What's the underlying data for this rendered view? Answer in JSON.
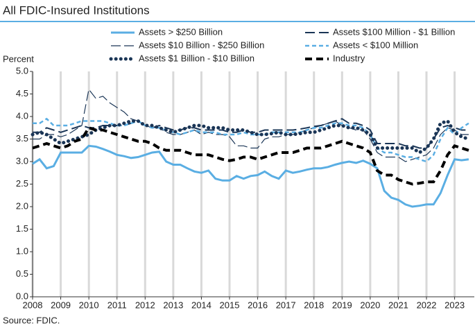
{
  "chart_data": {
    "type": "line",
    "title": "All FDIC-Insured Institutions",
    "y_label": "Percent",
    "source": "Source: FDIC.",
    "x": [
      2008,
      2008.25,
      2008.5,
      2008.75,
      2009,
      2009.25,
      2009.5,
      2009.75,
      2010,
      2010.25,
      2010.5,
      2010.75,
      2011,
      2011.25,
      2011.5,
      2011.75,
      2012,
      2012.25,
      2012.5,
      2012.75,
      2013,
      2013.25,
      2013.5,
      2013.75,
      2014,
      2014.25,
      2014.5,
      2014.75,
      2015,
      2015.25,
      2015.5,
      2015.75,
      2016,
      2016.25,
      2016.5,
      2016.75,
      2017,
      2017.25,
      2017.5,
      2017.75,
      2018,
      2018.25,
      2018.5,
      2018.75,
      2019,
      2019.25,
      2019.5,
      2019.75,
      2020,
      2020.25,
      2020.5,
      2020.75,
      2021,
      2021.25,
      2021.5,
      2021.75,
      2022,
      2022.25,
      2022.5,
      2022.75,
      2023,
      2023.25,
      2023.5
    ],
    "series": [
      {
        "name": "Assets > $250 Billion",
        "color": "#5aaee3",
        "style": "solid",
        "values": [
          2.95,
          3.05,
          2.85,
          2.9,
          3.2,
          3.2,
          3.2,
          3.2,
          3.35,
          3.33,
          3.28,
          3.22,
          3.15,
          3.12,
          3.08,
          3.1,
          3.15,
          3.2,
          3.22,
          3.0,
          2.93,
          2.93,
          2.85,
          2.78,
          2.75,
          2.8,
          2.62,
          2.58,
          2.58,
          2.68,
          2.62,
          2.68,
          2.7,
          2.78,
          2.68,
          2.62,
          2.8,
          2.75,
          2.78,
          2.82,
          2.85,
          2.85,
          2.88,
          2.93,
          2.97,
          3.0,
          2.97,
          3.02,
          2.95,
          2.85,
          2.35,
          2.2,
          2.15,
          2.05,
          2.0,
          2.02,
          2.05,
          2.05,
          2.3,
          2.7,
          3.05,
          3.03,
          3.05
        ]
      },
      {
        "name": "Assets  $100 Million - $1 Billion",
        "color": "#1a3556",
        "style": "long-dash",
        "values": [
          3.65,
          3.65,
          3.75,
          3.7,
          3.65,
          3.7,
          3.75,
          3.8,
          3.75,
          3.75,
          3.8,
          3.8,
          3.8,
          3.8,
          3.85,
          3.9,
          3.8,
          3.75,
          3.8,
          3.75,
          3.7,
          3.7,
          3.75,
          3.75,
          3.7,
          3.7,
          3.7,
          3.7,
          3.65,
          3.65,
          3.7,
          3.65,
          3.65,
          3.7,
          3.7,
          3.7,
          3.7,
          3.7,
          3.72,
          3.75,
          3.78,
          3.8,
          3.85,
          3.9,
          3.95,
          3.85,
          3.85,
          3.8,
          3.7,
          3.4,
          3.4,
          3.4,
          3.4,
          3.35,
          3.35,
          3.3,
          3.3,
          3.5,
          3.75,
          3.8,
          3.75,
          3.7,
          3.7
        ]
      },
      {
        "name": "Assets  $10 Billion - $250 Billion",
        "color": "#1a3556",
        "style": "thin-dash",
        "values": [
          3.5,
          3.5,
          3.6,
          3.6,
          3.55,
          3.6,
          3.7,
          3.8,
          4.6,
          4.4,
          4.45,
          4.3,
          4.2,
          4.1,
          3.95,
          3.9,
          3.8,
          3.75,
          3.75,
          3.65,
          3.6,
          3.6,
          3.65,
          3.7,
          3.6,
          3.65,
          3.6,
          3.6,
          3.55,
          3.35,
          3.35,
          3.3,
          3.3,
          3.5,
          3.55,
          3.55,
          3.6,
          3.6,
          3.65,
          3.7,
          3.75,
          3.8,
          3.85,
          3.9,
          3.8,
          3.75,
          3.7,
          3.7,
          3.5,
          3.2,
          3.1,
          3.1,
          3.1,
          3.0,
          3.05,
          3.1,
          3.15,
          3.3,
          3.6,
          3.75,
          3.7,
          3.6,
          3.6
        ]
      },
      {
        "name": "Assets < $100 Million",
        "color": "#5aaee3",
        "style": "dash",
        "values": [
          3.85,
          3.85,
          3.95,
          3.8,
          3.8,
          3.8,
          3.85,
          3.9,
          3.9,
          3.9,
          3.9,
          3.85,
          3.8,
          3.8,
          3.85,
          3.9,
          3.8,
          3.75,
          3.75,
          3.7,
          3.65,
          3.6,
          3.65,
          3.7,
          3.65,
          3.65,
          3.65,
          3.6,
          3.6,
          3.6,
          3.65,
          3.6,
          3.6,
          3.6,
          3.65,
          3.65,
          3.65,
          3.65,
          3.65,
          3.7,
          3.75,
          3.75,
          3.8,
          3.85,
          3.85,
          3.8,
          3.8,
          3.75,
          3.6,
          3.3,
          3.2,
          3.2,
          3.15,
          3.1,
          3.1,
          3.05,
          3.0,
          3.15,
          3.5,
          3.75,
          3.6,
          3.75,
          3.85
        ]
      },
      {
        "name": "Assets  $1 Billion - $10 Billion",
        "color": "#1a3556",
        "style": "dotted",
        "values": [
          3.6,
          3.65,
          3.6,
          3.5,
          3.4,
          3.45,
          3.5,
          3.55,
          3.6,
          3.7,
          3.75,
          3.8,
          3.8,
          3.85,
          3.9,
          3.9,
          3.8,
          3.8,
          3.75,
          3.7,
          3.65,
          3.7,
          3.75,
          3.8,
          3.8,
          3.75,
          3.75,
          3.75,
          3.7,
          3.7,
          3.7,
          3.65,
          3.6,
          3.6,
          3.62,
          3.65,
          3.6,
          3.6,
          3.62,
          3.65,
          3.65,
          3.7,
          3.75,
          3.8,
          3.8,
          3.75,
          3.75,
          3.7,
          3.6,
          3.3,
          3.3,
          3.3,
          3.3,
          3.3,
          3.3,
          3.2,
          3.3,
          3.5,
          3.85,
          3.9,
          3.65,
          3.55,
          3.5
        ]
      },
      {
        "name": "Industry",
        "color": "#000000",
        "style": "thick-dash",
        "values": [
          3.3,
          3.35,
          3.4,
          3.35,
          3.3,
          3.35,
          3.45,
          3.5,
          3.75,
          3.7,
          3.7,
          3.65,
          3.6,
          3.55,
          3.5,
          3.45,
          3.45,
          3.4,
          3.3,
          3.25,
          3.25,
          3.25,
          3.2,
          3.15,
          3.15,
          3.15,
          3.1,
          3.05,
          3.02,
          3.05,
          3.1,
          3.1,
          3.05,
          3.1,
          3.15,
          3.2,
          3.2,
          3.2,
          3.25,
          3.3,
          3.3,
          3.3,
          3.35,
          3.4,
          3.45,
          3.4,
          3.35,
          3.3,
          3.2,
          2.8,
          2.7,
          2.7,
          2.6,
          2.55,
          2.5,
          2.52,
          2.55,
          2.55,
          2.8,
          3.15,
          3.35,
          3.3,
          3.25
        ]
      }
    ],
    "xlim": [
      2008,
      2023.7
    ],
    "xticks": [
      2008,
      2009,
      2010,
      2011,
      2012,
      2013,
      2014,
      2015,
      2016,
      2017,
      2018,
      2019,
      2020,
      2021,
      2022,
      2023
    ],
    "ylim": [
      0,
      5
    ],
    "yticks": [
      {
        "value": 0,
        "label": "0.0"
      },
      0.5,
      {
        "value": 1,
        "label": "1.0"
      },
      1.5,
      {
        "value": 2,
        "label": "2.0"
      },
      2.5,
      {
        "value": 3,
        "label": "3.0"
      },
      3.5,
      {
        "value": 4,
        "label": "4.0"
      },
      4.5,
      {
        "value": 5,
        "label": "5.0"
      }
    ],
    "grid": "x"
  }
}
